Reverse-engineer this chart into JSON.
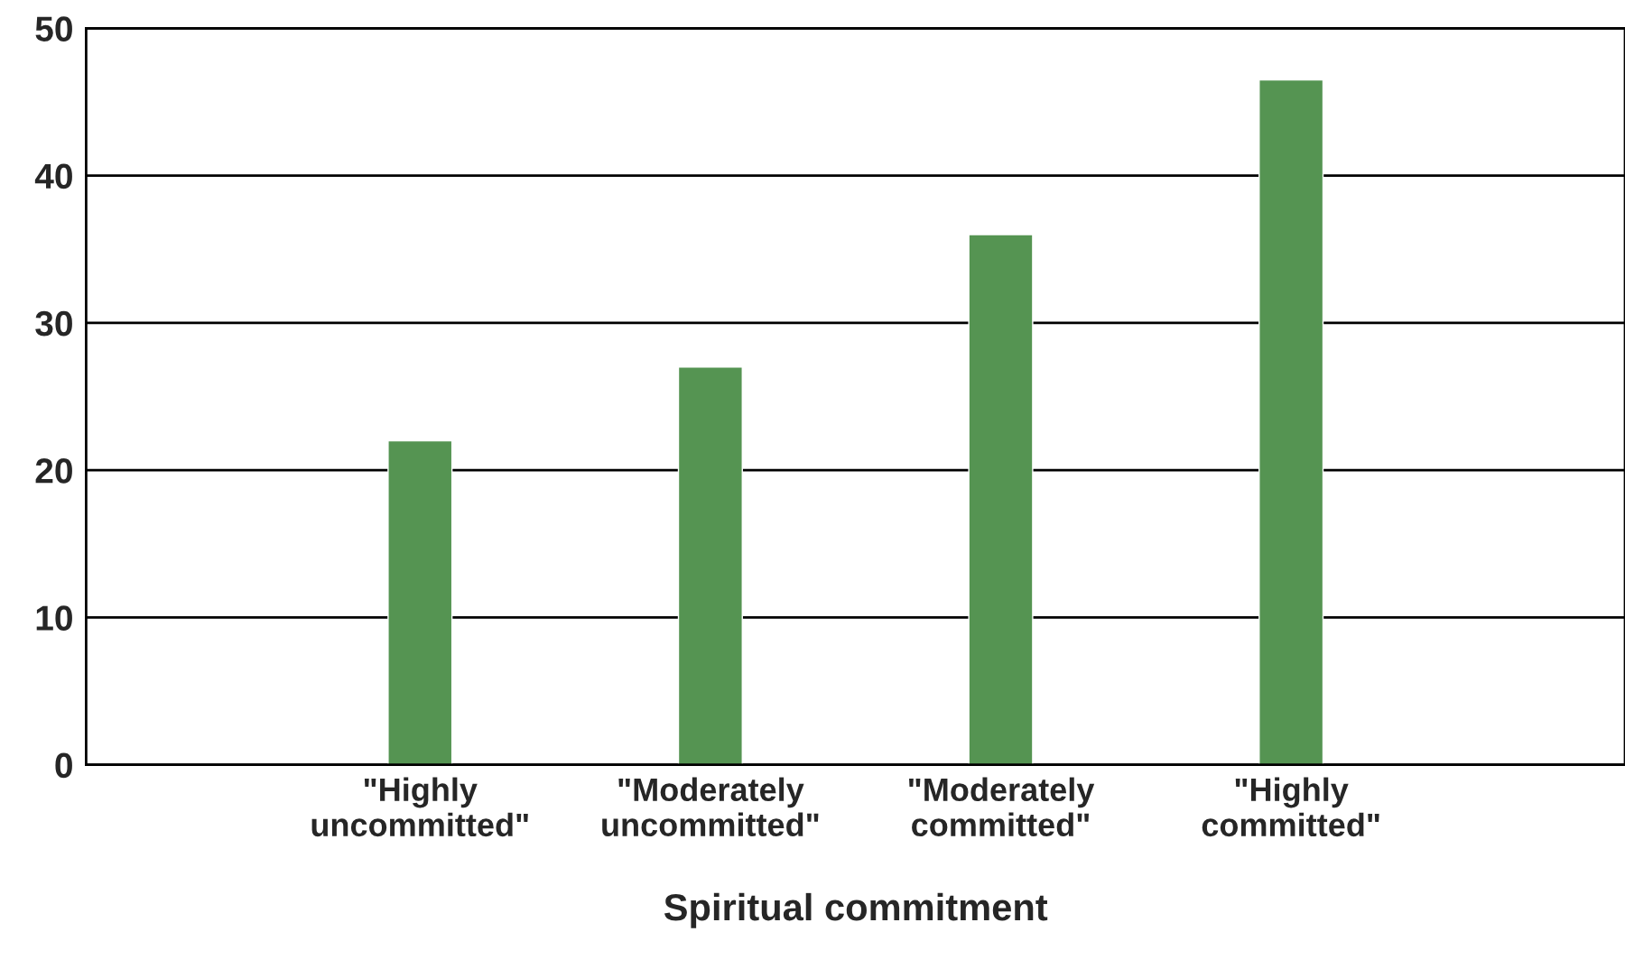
{
  "chart_data": {
    "type": "bar",
    "xlabel": "Spiritual commitment",
    "categories": [
      "\"Highly\nuncommitted\"",
      "\"Moderately\nuncommitted\"",
      "\"Moderately\ncommitted\"",
      "\"Highly\ncommitted\""
    ],
    "values": [
      22,
      27,
      36,
      46.5
    ],
    "color": "#559452",
    "ylim": [
      0,
      50
    ],
    "yticks": [
      0,
      10,
      20,
      30,
      40,
      50
    ],
    "grid": "y"
  }
}
